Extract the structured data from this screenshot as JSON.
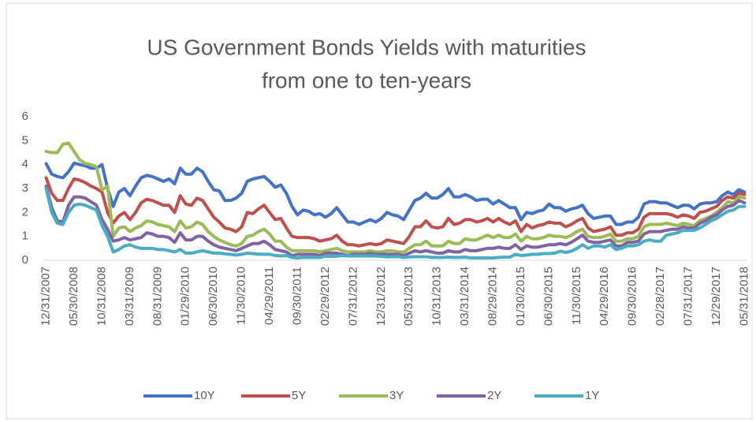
{
  "chart_data": {
    "type": "line",
    "title": [
      "US Government Bonds Yields with maturities",
      "from one to ten-years"
    ],
    "categories": [
      "12/31/2007",
      null,
      null,
      null,
      null,
      "05/30/2008",
      null,
      null,
      null,
      null,
      "10/31/2008",
      null,
      null,
      null,
      null,
      "03/31/2009",
      null,
      null,
      null,
      null,
      "08/31/2009",
      null,
      null,
      null,
      null,
      "01/29/2010",
      null,
      null,
      null,
      null,
      "06/30/2010",
      null,
      null,
      null,
      null,
      "11/30/2010",
      null,
      null,
      null,
      null,
      "04/29/2011",
      null,
      null,
      null,
      null,
      "09/30/2011",
      null,
      null,
      null,
      null,
      "02/29/2012",
      null,
      null,
      null,
      null,
      "07/31/2012",
      null,
      null,
      null,
      null,
      "12/31/2012",
      null,
      null,
      null,
      null,
      "05/31/2013",
      null,
      null,
      null,
      null,
      "10/31/2013",
      null,
      null,
      null,
      null,
      "03/31/2014",
      null,
      null,
      null,
      null,
      "08/29/2014",
      null,
      null,
      null,
      null,
      "01/30/2015",
      null,
      null,
      null,
      null,
      "06/30/2015",
      null,
      null,
      null,
      null,
      "11/30/2015",
      null,
      null,
      null,
      null,
      "04/29/2016",
      null,
      null,
      null,
      null,
      "09/30/2016",
      null,
      null,
      null,
      null,
      "02/28/2017",
      null,
      null,
      null,
      null,
      "07/31/2017",
      null,
      null,
      null,
      null,
      "12/29/2017",
      null,
      null,
      null,
      null,
      "05/31/2018"
    ],
    "series": [
      {
        "name": "10Y",
        "color": "#4472c4",
        "values": [
          4.04,
          3.6,
          3.5,
          3.45,
          3.7,
          4.06,
          4.0,
          3.95,
          3.85,
          3.85,
          4.0,
          3.0,
          2.25,
          2.85,
          3.0,
          2.7,
          3.1,
          3.45,
          3.55,
          3.5,
          3.4,
          3.3,
          3.4,
          3.2,
          3.85,
          3.6,
          3.6,
          3.85,
          3.7,
          3.3,
          2.95,
          2.9,
          2.5,
          2.5,
          2.6,
          2.8,
          3.3,
          3.4,
          3.45,
          3.5,
          3.3,
          3.05,
          3.15,
          2.8,
          2.25,
          1.9,
          2.1,
          2.05,
          1.9,
          1.95,
          1.8,
          1.95,
          2.2,
          1.9,
          1.6,
          1.6,
          1.5,
          1.6,
          1.7,
          1.6,
          1.75,
          2.0,
          1.9,
          1.85,
          1.7,
          2.1,
          2.5,
          2.6,
          2.8,
          2.6,
          2.6,
          2.75,
          3.0,
          2.65,
          2.65,
          2.75,
          2.65,
          2.5,
          2.55,
          2.55,
          2.35,
          2.5,
          2.35,
          2.2,
          2.2,
          1.7,
          2.0,
          1.95,
          2.05,
          2.1,
          2.35,
          2.2,
          2.2,
          2.05,
          2.15,
          2.2,
          2.3,
          1.95,
          1.75,
          1.8,
          1.85,
          1.85,
          1.5,
          1.5,
          1.6,
          1.6,
          1.8,
          2.35,
          2.45,
          2.45,
          2.4,
          2.4,
          2.3,
          2.2,
          2.3,
          2.3,
          2.15,
          2.35,
          2.4,
          2.4,
          2.45,
          2.7,
          2.85,
          2.75,
          2.95,
          2.85
        ]
      },
      {
        "name": "5Y",
        "color": "#c0504d",
        "values": [
          3.45,
          2.8,
          2.5,
          2.5,
          3.0,
          3.4,
          3.35,
          3.25,
          3.1,
          3.0,
          2.85,
          2.0,
          1.55,
          1.85,
          2.0,
          1.7,
          2.0,
          2.4,
          2.55,
          2.5,
          2.4,
          2.3,
          2.3,
          2.0,
          2.7,
          2.35,
          2.3,
          2.6,
          2.5,
          2.15,
          1.8,
          1.6,
          1.35,
          1.3,
          1.2,
          1.4,
          2.0,
          1.95,
          2.15,
          2.3,
          2.0,
          1.7,
          1.75,
          1.35,
          1.0,
          0.95,
          0.95,
          0.95,
          0.9,
          0.8,
          0.85,
          0.9,
          1.05,
          0.8,
          0.65,
          0.65,
          0.6,
          0.65,
          0.7,
          0.65,
          0.7,
          0.85,
          0.8,
          0.75,
          0.7,
          1.0,
          1.4,
          1.4,
          1.65,
          1.4,
          1.35,
          1.4,
          1.75,
          1.5,
          1.55,
          1.7,
          1.7,
          1.6,
          1.65,
          1.75,
          1.6,
          1.75,
          1.6,
          1.5,
          1.65,
          1.2,
          1.5,
          1.35,
          1.45,
          1.5,
          1.6,
          1.55,
          1.55,
          1.4,
          1.5,
          1.65,
          1.75,
          1.35,
          1.2,
          1.25,
          1.3,
          1.4,
          1.05,
          1.05,
          1.15,
          1.15,
          1.3,
          1.8,
          1.95,
          1.95,
          1.95,
          1.95,
          1.9,
          1.8,
          1.9,
          1.85,
          1.75,
          2.0,
          2.05,
          2.15,
          2.25,
          2.5,
          2.65,
          2.6,
          2.8,
          2.75
        ]
      },
      {
        "name": "3Y",
        "color": "#9bbb59",
        "values": [
          4.55,
          4.5,
          4.5,
          4.85,
          4.9,
          4.55,
          4.2,
          4.05,
          4.0,
          3.9,
          2.95,
          3.1,
          1.0,
          1.35,
          1.4,
          1.2,
          1.35,
          1.45,
          1.65,
          1.6,
          1.5,
          1.45,
          1.4,
          1.2,
          1.65,
          1.35,
          1.4,
          1.6,
          1.5,
          1.2,
          1.0,
          0.85,
          0.75,
          0.65,
          0.6,
          0.7,
          1.0,
          1.05,
          1.2,
          1.3,
          1.1,
          0.8,
          0.8,
          0.55,
          0.4,
          0.4,
          0.4,
          0.4,
          0.4,
          0.35,
          0.4,
          0.45,
          0.5,
          0.4,
          0.35,
          0.35,
          0.35,
          0.35,
          0.4,
          0.35,
          0.35,
          0.4,
          0.4,
          0.35,
          0.35,
          0.5,
          0.65,
          0.65,
          0.8,
          0.6,
          0.6,
          0.6,
          0.8,
          0.7,
          0.7,
          0.9,
          0.85,
          0.85,
          0.95,
          1.05,
          0.95,
          1.05,
          0.95,
          0.95,
          1.1,
          0.8,
          1.0,
          0.9,
          0.9,
          0.95,
          1.05,
          1.0,
          1.0,
          0.95,
          1.05,
          1.2,
          1.3,
          1.0,
          0.95,
          0.95,
          1.0,
          1.1,
          0.8,
          0.8,
          0.9,
          0.9,
          1.0,
          1.4,
          1.5,
          1.5,
          1.5,
          1.55,
          1.5,
          1.45,
          1.55,
          1.5,
          1.45,
          1.65,
          1.75,
          1.85,
          2.0,
          2.2,
          2.45,
          2.4,
          2.65,
          2.6
        ]
      },
      {
        "name": "2Y",
        "color": "#8064a2",
        "values": [
          3.1,
          2.2,
          1.65,
          1.6,
          2.3,
          2.65,
          2.65,
          2.6,
          2.45,
          2.3,
          1.7,
          1.3,
          0.8,
          0.85,
          0.95,
          0.85,
          0.9,
          0.95,
          1.15,
          1.1,
          1.0,
          1.0,
          0.95,
          0.75,
          1.15,
          0.85,
          0.85,
          1.0,
          1.0,
          0.8,
          0.65,
          0.55,
          0.5,
          0.45,
          0.4,
          0.5,
          0.6,
          0.7,
          0.7,
          0.8,
          0.65,
          0.45,
          0.4,
          0.35,
          0.2,
          0.25,
          0.25,
          0.25,
          0.25,
          0.2,
          0.3,
          0.3,
          0.3,
          0.25,
          0.2,
          0.25,
          0.25,
          0.25,
          0.3,
          0.25,
          0.25,
          0.25,
          0.25,
          0.25,
          0.2,
          0.3,
          0.4,
          0.35,
          0.4,
          0.35,
          0.3,
          0.3,
          0.4,
          0.35,
          0.35,
          0.45,
          0.4,
          0.4,
          0.45,
          0.5,
          0.5,
          0.55,
          0.5,
          0.5,
          0.65,
          0.45,
          0.6,
          0.55,
          0.55,
          0.6,
          0.65,
          0.65,
          0.7,
          0.65,
          0.75,
          0.9,
          1.05,
          0.8,
          0.75,
          0.75,
          0.8,
          0.85,
          0.6,
          0.6,
          0.75,
          0.75,
          0.8,
          1.1,
          1.2,
          1.2,
          1.2,
          1.25,
          1.3,
          1.3,
          1.4,
          1.35,
          1.35,
          1.55,
          1.65,
          1.8,
          1.9,
          2.1,
          2.25,
          2.3,
          2.5,
          2.4
        ]
      },
      {
        "name": "1Y",
        "color": "#4bacc6",
        "values": [
          3.0,
          2.0,
          1.55,
          1.5,
          2.0,
          2.3,
          2.35,
          2.3,
          2.2,
          2.1,
          1.45,
          1.0,
          0.35,
          0.45,
          0.6,
          0.65,
          0.55,
          0.5,
          0.5,
          0.5,
          0.45,
          0.45,
          0.4,
          0.35,
          0.45,
          0.3,
          0.3,
          0.35,
          0.4,
          0.35,
          0.3,
          0.3,
          0.27,
          0.25,
          0.22,
          0.25,
          0.3,
          0.28,
          0.26,
          0.25,
          0.25,
          0.2,
          0.18,
          0.2,
          0.12,
          0.1,
          0.12,
          0.12,
          0.12,
          0.12,
          0.17,
          0.17,
          0.17,
          0.2,
          0.18,
          0.18,
          0.18,
          0.18,
          0.18,
          0.18,
          0.16,
          0.15,
          0.15,
          0.15,
          0.12,
          0.14,
          0.15,
          0.15,
          0.15,
          0.12,
          0.12,
          0.12,
          0.13,
          0.12,
          0.12,
          0.13,
          0.1,
          0.1,
          0.1,
          0.1,
          0.1,
          0.12,
          0.13,
          0.13,
          0.25,
          0.2,
          0.22,
          0.25,
          0.25,
          0.28,
          0.28,
          0.3,
          0.38,
          0.33,
          0.38,
          0.5,
          0.65,
          0.5,
          0.6,
          0.6,
          0.55,
          0.65,
          0.45,
          0.5,
          0.6,
          0.6,
          0.65,
          0.8,
          0.85,
          0.8,
          0.8,
          1.05,
          1.1,
          1.15,
          1.25,
          1.25,
          1.25,
          1.35,
          1.5,
          1.65,
          1.75,
          1.9,
          2.05,
          2.1,
          2.25,
          2.25
        ]
      }
    ],
    "ylim": [
      0,
      6
    ],
    "yticks": [
      0,
      1,
      2,
      3,
      4,
      5,
      6
    ],
    "grid": false,
    "legend": "bottom"
  }
}
